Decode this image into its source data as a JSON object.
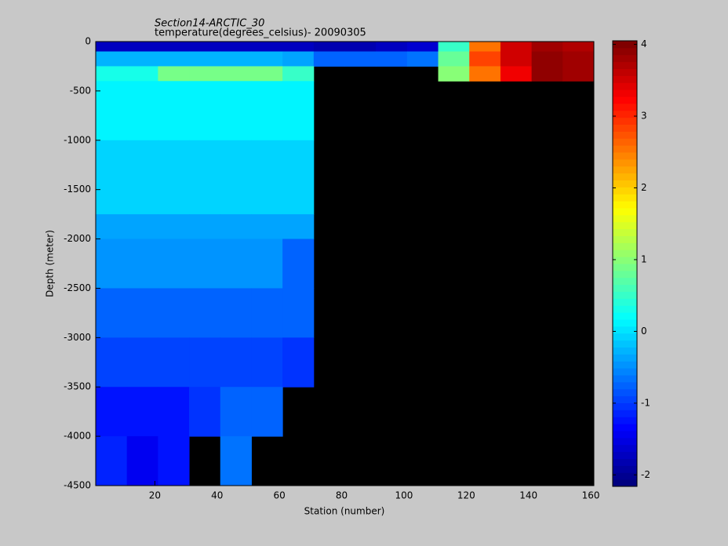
{
  "chart_data": {
    "type": "heatmap",
    "title": "Section14-ARCTIC_30",
    "subtitle": "temperature(degrees_celsius)- 20090305",
    "x_label": "Station (number)",
    "y_label": "Depth (meter)",
    "x_edges": [
      1,
      11,
      21,
      31,
      41,
      51,
      61,
      71,
      81,
      91,
      101,
      111,
      121,
      131,
      141,
      151,
      161
    ],
    "y_edges": [
      0,
      -100,
      -250,
      -400,
      -1000,
      -1750,
      -2000,
      -2500,
      -3000,
      -3500,
      -4000,
      -4500
    ],
    "values": [
      [
        -1.7,
        -1.7,
        -1.7,
        -1.7,
        -1.7,
        -1.7,
        -1.7,
        -1.8,
        -1.8,
        -1.7,
        -1.6,
        0.5,
        2.5,
        3.5,
        3.8,
        3.7
      ],
      [
        -0.3,
        -0.3,
        -0.3,
        -0.3,
        -0.3,
        -0.3,
        -0.4,
        -0.8,
        -0.8,
        -0.8,
        -0.7,
        0.8,
        2.8,
        3.5,
        3.9,
        3.8
      ],
      [
        0.3,
        0.3,
        0.9,
        0.9,
        0.9,
        0.9,
        0.5,
        null,
        null,
        null,
        null,
        1.0,
        2.5,
        3.3,
        3.9,
        3.8
      ],
      [
        0.1,
        0.1,
        0.1,
        0.1,
        0.1,
        0.1,
        0.1,
        null,
        null,
        null,
        null,
        null,
        null,
        null,
        null,
        null
      ],
      [
        -0.1,
        -0.1,
        -0.1,
        -0.1,
        -0.1,
        -0.1,
        -0.1,
        null,
        null,
        null,
        null,
        null,
        null,
        null,
        null,
        null
      ],
      [
        -0.35,
        -0.35,
        -0.35,
        -0.35,
        -0.35,
        -0.35,
        -0.35,
        null,
        null,
        null,
        null,
        null,
        null,
        null,
        null,
        null
      ],
      [
        -0.5,
        -0.5,
        -0.5,
        -0.5,
        -0.5,
        -0.5,
        -0.8,
        null,
        null,
        null,
        null,
        null,
        null,
        null,
        null,
        null
      ],
      [
        -0.8,
        -0.8,
        -0.8,
        -0.8,
        -0.8,
        -0.8,
        -0.8,
        null,
        null,
        null,
        null,
        null,
        null,
        null,
        null,
        null
      ],
      [
        -0.9,
        -0.9,
        -0.9,
        -0.9,
        -0.9,
        -0.9,
        -1.0,
        null,
        null,
        null,
        null,
        null,
        null,
        null,
        null,
        null
      ],
      [
        -1.2,
        -1.2,
        -1.2,
        -1.0,
        -0.8,
        -0.8,
        null,
        null,
        null,
        null,
        null,
        null,
        null,
        null,
        null,
        null
      ],
      [
        -1.1,
        -1.4,
        -1.2,
        null,
        -0.7,
        null,
        null,
        null,
        null,
        null,
        null,
        null,
        null,
        null,
        null,
        null
      ]
    ],
    "xlim": [
      1,
      161
    ],
    "xticks": [
      20,
      40,
      60,
      80,
      100,
      120,
      140,
      160
    ],
    "ylim": [
      -4500,
      0
    ],
    "yticks": [
      0,
      -500,
      -1000,
      -1500,
      -2000,
      -2500,
      -3000,
      -3500,
      -4000,
      -4500
    ],
    "clim": [
      -2.16,
      4.05
    ],
    "cticks": [
      -2,
      -1,
      0,
      1,
      2,
      3,
      4
    ],
    "colormap": "jet",
    "missing_color": "#000000"
  }
}
